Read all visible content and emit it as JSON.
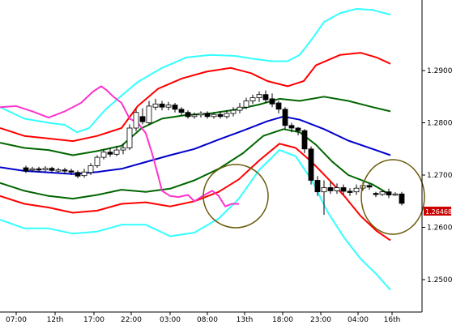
{
  "chart_data": {
    "type": "candlestick",
    "y_ticks": [
      "1.2900",
      "1.2800",
      "1.2700",
      "1.2600",
      "1.2500"
    ],
    "y_tick_values": [
      1.29,
      1.28,
      1.27,
      1.26,
      1.25
    ],
    "x_ticks": [
      "07:00",
      "12th",
      "17:00",
      "22:00",
      "03:00",
      "08:00",
      "13th",
      "18:00",
      "23:00",
      "04:00",
      "16th"
    ],
    "ylim": [
      1.2438,
      1.3035
    ],
    "current_price": "1.26468",
    "colors": {
      "bollinger_outer": "#33ffff",
      "bollinger_2": "#ff0000",
      "bollinger_1": "#006600",
      "middle_line": "#0000cc",
      "lagging_line": "#ff33cc",
      "ellipse": "#6b5a0a",
      "badge": "#cc0000",
      "bull_candle": "#ffffff",
      "bear_candle": "#000000"
    },
    "series": {
      "middle": [
        [
          0,
          1.2715
        ],
        [
          30,
          1.2708
        ],
        [
          60,
          1.2705
        ],
        [
          90,
          1.2702
        ],
        [
          120,
          1.2706
        ],
        [
          150,
          1.2712
        ],
        [
          180,
          1.2725
        ],
        [
          210,
          1.2738
        ],
        [
          240,
          1.275
        ],
        [
          270,
          1.2768
        ],
        [
          300,
          1.2785
        ],
        [
          330,
          1.2803
        ],
        [
          350,
          1.2812
        ],
        [
          370,
          1.2806
        ],
        [
          400,
          1.2788
        ],
        [
          430,
          1.2766
        ],
        [
          460,
          1.275
        ],
        [
          482,
          1.2738
        ]
      ],
      "upper1": [
        [
          0,
          1.2762
        ],
        [
          30,
          1.2752
        ],
        [
          60,
          1.2748
        ],
        [
          90,
          1.2738
        ],
        [
          120,
          1.2746
        ],
        [
          150,
          1.2756
        ],
        [
          175,
          1.279
        ],
        [
          200,
          1.2808
        ],
        [
          230,
          1.2815
        ],
        [
          260,
          1.2818
        ],
        [
          290,
          1.2825
        ],
        [
          320,
          1.2835
        ],
        [
          345,
          1.2846
        ],
        [
          370,
          1.2842
        ],
        [
          400,
          1.285
        ],
        [
          430,
          1.2842
        ],
        [
          460,
          1.283
        ],
        [
          482,
          1.2822
        ]
      ],
      "lower1": [
        [
          0,
          1.2685
        ],
        [
          30,
          1.267
        ],
        [
          60,
          1.266
        ],
        [
          90,
          1.2655
        ],
        [
          120,
          1.2662
        ],
        [
          150,
          1.2672
        ],
        [
          180,
          1.2668
        ],
        [
          210,
          1.2674
        ],
        [
          240,
          1.269
        ],
        [
          270,
          1.2712
        ],
        [
          300,
          1.2742
        ],
        [
          325,
          1.2775
        ],
        [
          350,
          1.2788
        ],
        [
          370,
          1.2782
        ],
        [
          390,
          1.2758
        ],
        [
          410,
          1.2726
        ],
        [
          430,
          1.27
        ],
        [
          460,
          1.2682
        ],
        [
          482,
          1.2662
        ]
      ],
      "upper2": [
        [
          0,
          1.279
        ],
        [
          30,
          1.2775
        ],
        [
          60,
          1.277
        ],
        [
          90,
          1.2765
        ],
        [
          120,
          1.2775
        ],
        [
          150,
          1.279
        ],
        [
          170,
          1.2832
        ],
        [
          195,
          1.2865
        ],
        [
          225,
          1.2885
        ],
        [
          255,
          1.2898
        ],
        [
          285,
          1.2905
        ],
        [
          310,
          1.2895
        ],
        [
          330,
          1.288
        ],
        [
          355,
          1.287
        ],
        [
          375,
          1.288
        ],
        [
          390,
          1.291
        ],
        [
          420,
          1.293
        ],
        [
          445,
          1.2934
        ],
        [
          465,
          1.2925
        ],
        [
          482,
          1.2913
        ]
      ],
      "lower2": [
        [
          0,
          1.266
        ],
        [
          30,
          1.2645
        ],
        [
          60,
          1.2638
        ],
        [
          90,
          1.2628
        ],
        [
          120,
          1.2632
        ],
        [
          150,
          1.2645
        ],
        [
          180,
          1.2648
        ],
        [
          210,
          1.264
        ],
        [
          240,
          1.265
        ],
        [
          270,
          1.2668
        ],
        [
          295,
          1.2692
        ],
        [
          320,
          1.2728
        ],
        [
          345,
          1.276
        ],
        [
          365,
          1.2752
        ],
        [
          385,
          1.2725
        ],
        [
          405,
          1.2693
        ],
        [
          425,
          1.266
        ],
        [
          445,
          1.2622
        ],
        [
          465,
          1.2593
        ],
        [
          482,
          1.2575
        ]
      ],
      "outer": [
        [
          0,
          1.283
        ],
        [
          30,
          1.2808
        ],
        [
          60,
          1.28
        ],
        [
          80,
          1.2796
        ],
        [
          95,
          1.2782
        ],
        [
          110,
          1.279
        ],
        [
          130,
          1.2825
        ],
        [
          150,
          1.2852
        ],
        [
          170,
          1.2878
        ],
        [
          200,
          1.2905
        ],
        [
          230,
          1.2925
        ],
        [
          260,
          1.293
        ],
        [
          290,
          1.2928
        ],
        [
          315,
          1.2922
        ],
        [
          335,
          1.2918
        ],
        [
          355,
          1.2918
        ],
        [
          370,
          1.293
        ],
        [
          385,
          1.296
        ],
        [
          400,
          1.2993
        ],
        [
          420,
          1.301
        ],
        [
          440,
          1.3018
        ],
        [
          460,
          1.3016
        ],
        [
          482,
          1.3007
        ]
      ],
      "outer_lower": [
        [
          0,
          1.2615
        ],
        [
          30,
          1.2598
        ],
        [
          60,
          1.2598
        ],
        [
          90,
          1.2588
        ],
        [
          120,
          1.2592
        ],
        [
          150,
          1.2605
        ],
        [
          180,
          1.2605
        ],
        [
          210,
          1.2583
        ],
        [
          240,
          1.259
        ],
        [
          270,
          1.2617
        ],
        [
          295,
          1.2655
        ],
        [
          320,
          1.271
        ],
        [
          345,
          1.2748
        ],
        [
          365,
          1.2736
        ],
        [
          385,
          1.269
        ],
        [
          405,
          1.2628
        ],
        [
          425,
          1.258
        ],
        [
          445,
          1.254
        ],
        [
          465,
          1.251
        ],
        [
          482,
          1.248
        ]
      ],
      "lagging": [
        [
          0,
          1.283
        ],
        [
          20,
          1.2832
        ],
        [
          40,
          1.2822
        ],
        [
          60,
          1.281
        ],
        [
          80,
          1.2822
        ],
        [
          100,
          1.2838
        ],
        [
          115,
          1.286
        ],
        [
          125,
          1.287
        ],
        [
          132,
          1.2862
        ],
        [
          140,
          1.285
        ],
        [
          150,
          1.2838
        ],
        [
          160,
          1.2808
        ],
        [
          170,
          1.28
        ],
        [
          180,
          1.278
        ],
        [
          188,
          1.274
        ],
        [
          195,
          1.27
        ],
        [
          200,
          1.267
        ],
        [
          210,
          1.266
        ],
        [
          220,
          1.2658
        ],
        [
          232,
          1.2662
        ],
        [
          240,
          1.265
        ],
        [
          250,
          1.266
        ],
        [
          262,
          1.267
        ],
        [
          270,
          1.266
        ],
        [
          278,
          1.264
        ],
        [
          286,
          1.2645
        ],
        [
          295,
          1.2645
        ]
      ]
    },
    "candles": [
      [
        32,
        1.2714,
        1.2708,
        1.2718,
        1.2704
      ],
      [
        40,
        1.271,
        1.2712,
        1.2716,
        1.2706
      ],
      [
        48,
        1.2712,
        1.271,
        1.2716,
        1.2706
      ],
      [
        56,
        1.271,
        1.2713,
        1.2717,
        1.2707
      ],
      [
        64,
        1.2713,
        1.2709,
        1.2716,
        1.2705
      ],
      [
        72,
        1.2708,
        1.271,
        1.2714,
        1.2704
      ],
      [
        80,
        1.271,
        1.2708,
        1.2714,
        1.2703
      ],
      [
        88,
        1.2708,
        1.2706,
        1.2712,
        1.27
      ],
      [
        96,
        1.2705,
        1.2698,
        1.2709,
        1.2694
      ],
      [
        104,
        1.2699,
        1.2706,
        1.2712,
        1.2695
      ],
      [
        112,
        1.2705,
        1.2718,
        1.2723,
        1.27
      ],
      [
        120,
        1.2718,
        1.2734,
        1.2738,
        1.2714
      ],
      [
        128,
        1.2734,
        1.2744,
        1.275,
        1.273
      ],
      [
        136,
        1.2744,
        1.274,
        1.2752,
        1.2735
      ],
      [
        144,
        1.274,
        1.2748,
        1.2756,
        1.2736
      ],
      [
        152,
        1.2748,
        1.2752,
        1.276,
        1.274
      ],
      [
        160,
        1.2752,
        1.279,
        1.2797,
        1.2748
      ],
      [
        168,
        1.279,
        1.282,
        1.2826,
        1.2784
      ],
      [
        176,
        1.2812,
        1.2802,
        1.2828,
        1.2797
      ],
      [
        184,
        1.28,
        1.2832,
        1.2842,
        1.2796
      ],
      [
        192,
        1.283,
        1.2836,
        1.2846,
        1.2824
      ],
      [
        200,
        1.2836,
        1.283,
        1.2842,
        1.2824
      ],
      [
        208,
        1.283,
        1.2834,
        1.284,
        1.2824
      ],
      [
        216,
        1.2834,
        1.2826,
        1.2838,
        1.282
      ],
      [
        224,
        1.2826,
        1.282,
        1.283,
        1.2814
      ],
      [
        232,
        1.282,
        1.2812,
        1.2824,
        1.2808
      ],
      [
        240,
        1.2812,
        1.2815,
        1.282,
        1.2808
      ],
      [
        248,
        1.2815,
        1.2818,
        1.2822,
        1.281
      ],
      [
        256,
        1.2818,
        1.2812,
        1.2822,
        1.2808
      ],
      [
        264,
        1.2812,
        1.2816,
        1.282,
        1.2808
      ],
      [
        272,
        1.2816,
        1.2812,
        1.2822,
        1.2808
      ],
      [
        280,
        1.2812,
        1.2818,
        1.2824,
        1.2808
      ],
      [
        288,
        1.2818,
        1.2824,
        1.283,
        1.2812
      ],
      [
        296,
        1.2824,
        1.283,
        1.2838,
        1.2818
      ],
      [
        304,
        1.283,
        1.2842,
        1.2848,
        1.2826
      ],
      [
        312,
        1.2842,
        1.2848,
        1.2854,
        1.2836
      ],
      [
        320,
        1.2848,
        1.2854,
        1.286,
        1.284
      ],
      [
        328,
        1.2854,
        1.2844,
        1.2862,
        1.2838
      ],
      [
        336,
        1.2846,
        1.2836,
        1.2856,
        1.283
      ],
      [
        344,
        1.2838,
        1.2826,
        1.2842,
        1.2818
      ],
      [
        352,
        1.2826,
        1.2795,
        1.283,
        1.2788
      ],
      [
        360,
        1.2795,
        1.279,
        1.28,
        1.2782
      ],
      [
        368,
        1.279,
        1.2785,
        1.2792,
        1.2776
      ],
      [
        376,
        1.2785,
        1.275,
        1.2788,
        1.2742
      ],
      [
        384,
        1.275,
        1.269,
        1.2755,
        1.2682
      ],
      [
        392,
        1.269,
        1.2668,
        1.2698,
        1.266
      ],
      [
        400,
        1.2668,
        1.2676,
        1.269,
        1.2624
      ],
      [
        408,
        1.2676,
        1.267,
        1.2688,
        1.2664
      ],
      [
        416,
        1.267,
        1.2676,
        1.2684,
        1.2664
      ],
      [
        424,
        1.2676,
        1.2669,
        1.2682,
        1.2662
      ],
      [
        432,
        1.2669,
        1.2668,
        1.2675,
        1.266
      ],
      [
        440,
        1.2668,
        1.2675,
        1.2682,
        1.2662
      ],
      [
        448,
        1.2675,
        1.268,
        1.2686,
        1.267
      ],
      [
        456,
        1.268,
        1.2677,
        1.2684,
        1.2672
      ],
      [
        464,
        1.2665,
        1.2663,
        1.2668,
        1.2658
      ],
      [
        472,
        1.2663,
        1.2668,
        1.2672,
        1.266
      ],
      [
        480,
        1.2668,
        1.2662,
        1.2674,
        1.2656
      ],
      [
        488,
        1.2662,
        1.2664,
        1.2667,
        1.266
      ],
      [
        496,
        1.2664,
        1.2646,
        1.2668,
        1.2642
      ]
    ]
  }
}
